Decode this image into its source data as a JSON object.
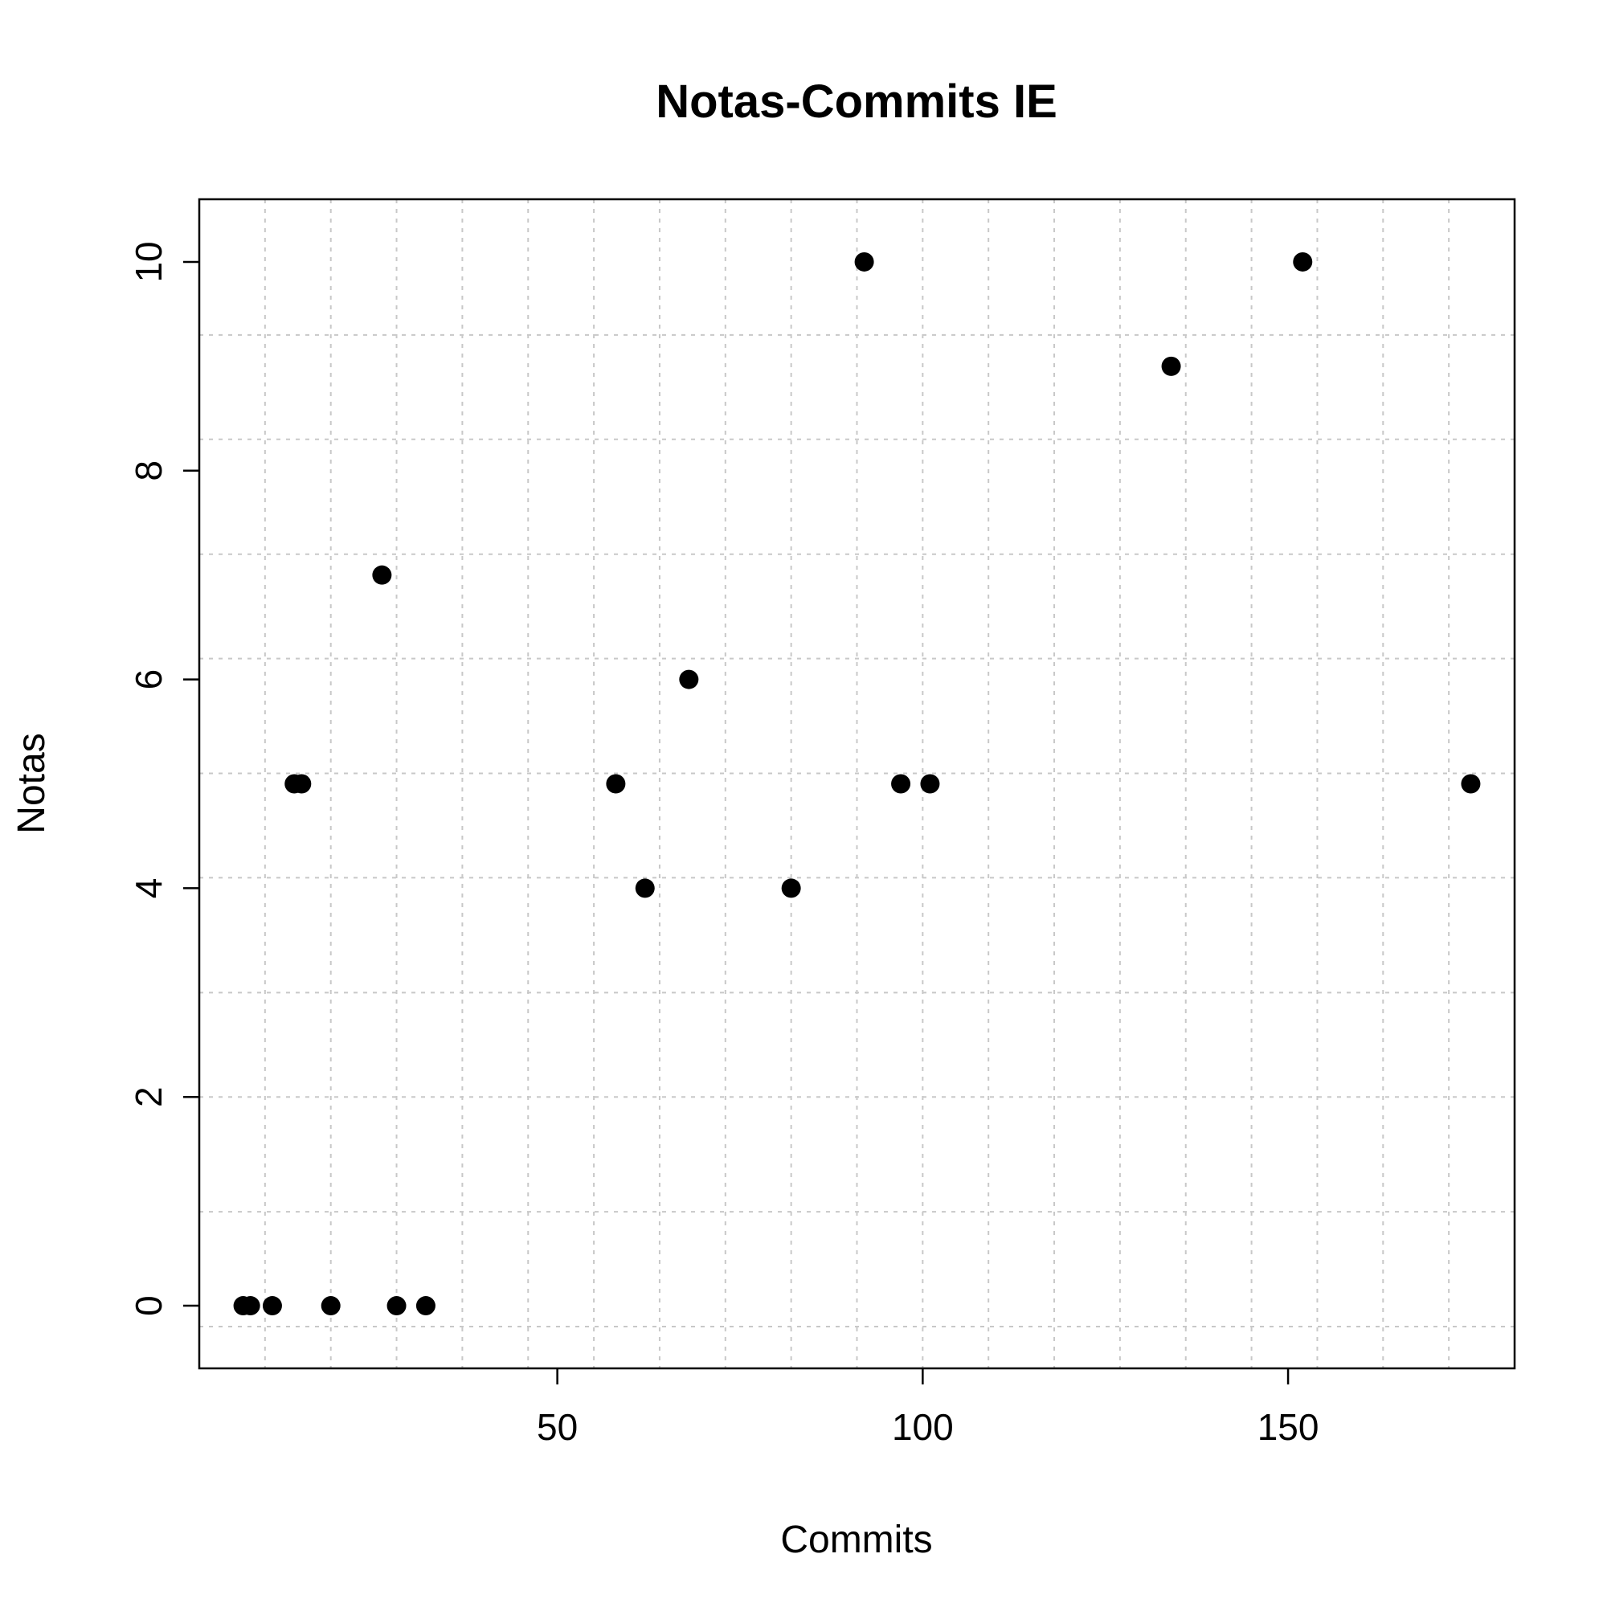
{
  "chart_data": {
    "type": "scatter",
    "title": "Notas-Commits IE",
    "xlabel": "Commits",
    "ylabel": "Notas",
    "xlim": [
      1,
      181
    ],
    "ylim": [
      -0.6,
      10.6
    ],
    "x_ticks": [
      50,
      100,
      150
    ],
    "y_ticks": [
      0,
      2,
      4,
      6,
      8,
      10
    ],
    "grid": true,
    "grid_x": [
      10,
      19,
      28,
      37,
      46,
      55,
      64,
      73,
      82,
      91,
      100,
      109,
      118,
      127,
      136,
      145,
      154,
      163,
      172
    ],
    "grid_y": [
      -0.2,
      0.9,
      2.0,
      3.0,
      4.1,
      5.1,
      6.2,
      7.2,
      8.3,
      9.3
    ],
    "points": [
      {
        "x": 7,
        "y": 0
      },
      {
        "x": 8,
        "y": 0
      },
      {
        "x": 11,
        "y": 0
      },
      {
        "x": 19,
        "y": 0
      },
      {
        "x": 28,
        "y": 0
      },
      {
        "x": 32,
        "y": 0
      },
      {
        "x": 14,
        "y": 5
      },
      {
        "x": 15,
        "y": 5
      },
      {
        "x": 26,
        "y": 7
      },
      {
        "x": 58,
        "y": 5
      },
      {
        "x": 62,
        "y": 4
      },
      {
        "x": 68,
        "y": 6
      },
      {
        "x": 82,
        "y": 4
      },
      {
        "x": 92,
        "y": 10
      },
      {
        "x": 97,
        "y": 5
      },
      {
        "x": 101,
        "y": 5
      },
      {
        "x": 134,
        "y": 9
      },
      {
        "x": 152,
        "y": 10
      },
      {
        "x": 175,
        "y": 5
      }
    ]
  }
}
